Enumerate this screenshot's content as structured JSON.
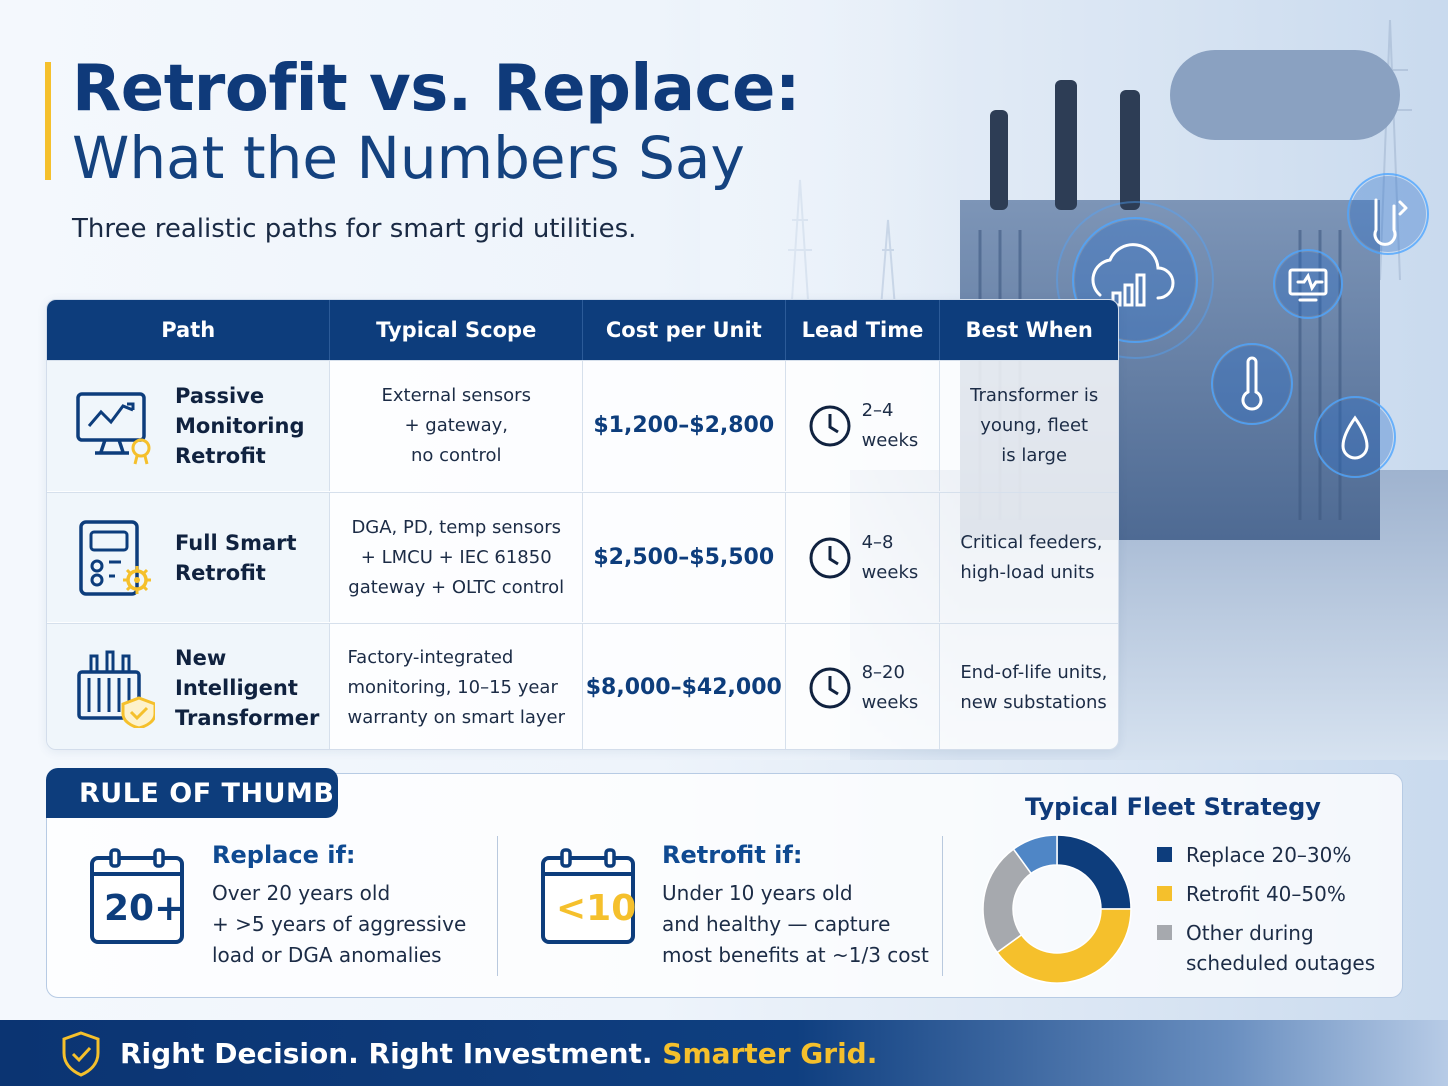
{
  "header": {
    "title_line1": "Retrofit vs. Replace:",
    "title_line2": "What the Numbers Say",
    "subtitle": "Three realistic paths for smart grid utilities."
  },
  "table": {
    "columns": [
      "Path",
      "Typical Scope",
      "Cost per Unit",
      "Lead Time",
      "Best When"
    ],
    "rows": [
      {
        "icon": "monitor-chart-icon",
        "path": [
          "Passive",
          "Monitoring",
          "Retrofit"
        ],
        "scope": [
          "External sensors",
          "+ gateway,",
          "no control"
        ],
        "cost": "$1,200–$2,800",
        "lead": [
          "2–4",
          "weeks"
        ],
        "best": [
          "Transformer is",
          "young, fleet",
          "is large"
        ]
      },
      {
        "icon": "control-panel-gear-icon",
        "path": [
          "Full Smart",
          "Retrofit"
        ],
        "scope": [
          "DGA, PD, temp sensors",
          "+ LMCU + IEC 61850",
          "gateway + OLTC control"
        ],
        "cost": "$2,500–$5,500",
        "lead": [
          "4–8",
          "weeks"
        ],
        "best": [
          "Critical feeders,",
          "high-load units"
        ]
      },
      {
        "icon": "transformer-shield-icon",
        "path": [
          "New Intelligent",
          "Transformer"
        ],
        "scope": [
          "Factory-integrated",
          "monitoring, 10–15 year",
          "warranty on smart layer"
        ],
        "cost": "$8,000–$42,000",
        "lead": [
          "8–20",
          "weeks"
        ],
        "best": [
          "End-of-life units,",
          "new substations"
        ]
      }
    ]
  },
  "rule_of_thumb": {
    "tab_label": "RULE OF THUMB",
    "replace": {
      "calendar_label": "20+",
      "heading": "Replace if:",
      "lines": [
        "Over 20 years old",
        "+ >5 years of aggressive",
        "load or DGA anomalies"
      ]
    },
    "retrofit": {
      "calendar_label": "<10",
      "heading": "Retrofit if:",
      "lines": [
        "Under 10 years old",
        "and healthy — capture",
        "most benefits at ~1/3 cost"
      ]
    }
  },
  "fleet": {
    "title": "Typical Fleet Strategy",
    "legend": [
      {
        "lines": [
          "Replace 20–30%"
        ],
        "color": "#0d3d7c"
      },
      {
        "lines": [
          "Retrofit 40–50%"
        ],
        "color": "#f5c02c"
      },
      {
        "lines": [
          "Other during",
          "scheduled outages"
        ],
        "color": "#a6a9ae"
      }
    ]
  },
  "chart_data": {
    "type": "pie",
    "title": "Typical Fleet Strategy",
    "categories": [
      "Replace",
      "Retrofit",
      "Other during scheduled outages",
      "Remainder"
    ],
    "values": [
      25,
      40,
      25,
      10
    ],
    "colors": [
      "#0d3d7c",
      "#f5c02c",
      "#a6a9ae",
      "#4f86c6"
    ]
  },
  "footer": {
    "text_main": "Right Decision. Right Investment.",
    "text_accent": "Smarter Grid."
  },
  "colors": {
    "navy": "#0d3d7c",
    "accent_yellow": "#f5c02c",
    "heading_blue": "#0f4a91"
  }
}
